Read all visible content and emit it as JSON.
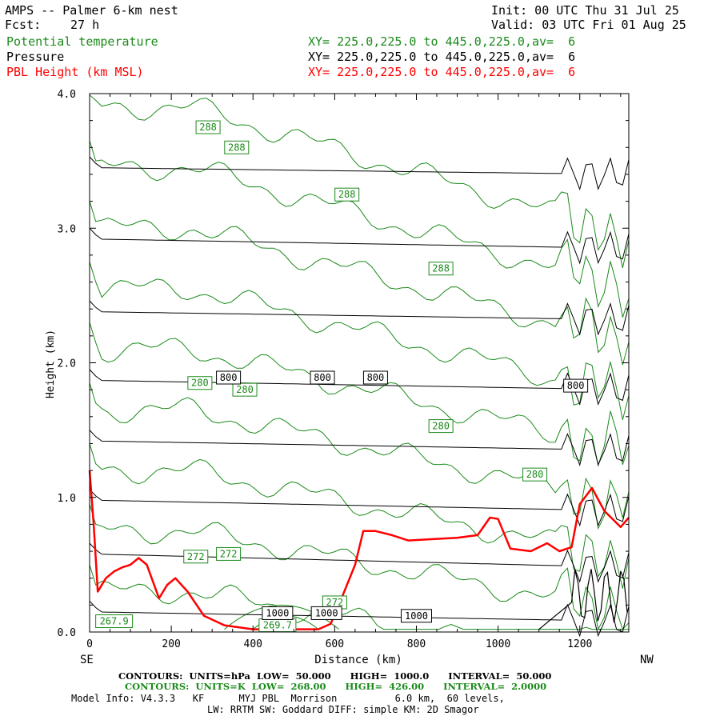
{
  "header": {
    "title_left": "AMPS -- Palmer 6-km nest",
    "fcst_label": "Fcst:",
    "fcst_value": "27 h",
    "init": "Init: 00 UTC Thu 31 Jul 25",
    "valid": "Valid: 03 UTC Fri 01 Aug 25"
  },
  "fields": [
    {
      "name": "Potential temperature",
      "xy": "XY= 225.0,225.0 to 445.0,225.0,av=  6",
      "color": "#1a8a1a"
    },
    {
      "name": "Pressure",
      "xy": "XY= 225.0,225.0 to 445.0,225.0,av=  6",
      "color": "#000000"
    },
    {
      "name": "PBL Height (km MSL)",
      "xy": "XY= 225.0,225.0 to 445.0,225.0,av=  6",
      "color": "#ff0000"
    }
  ],
  "chart_data": {
    "type": "line",
    "title": "",
    "xlabel": "Distance (km)",
    "ylabel": "Height (km)",
    "xlim": [
      0,
      1320
    ],
    "ylim": [
      0,
      4.0
    ],
    "x_ticks": [
      "0",
      "200",
      "400",
      "600",
      "800",
      "1000",
      "1200"
    ],
    "y_ticks": [
      "0.0",
      "1.0",
      "2.0",
      "3.0",
      "4.0"
    ],
    "left_end_label": "SE",
    "right_end_label": "NW",
    "pbl_height": {
      "name": "PBL Height (km MSL)",
      "color": "#ff0000",
      "x": [
        0,
        10,
        20,
        40,
        60,
        80,
        100,
        120,
        140,
        170,
        190,
        210,
        240,
        280,
        330,
        400,
        480,
        560,
        590,
        610,
        630,
        650,
        670,
        700,
        740,
        780,
        840,
        900,
        950,
        980,
        1000,
        1030,
        1080,
        1120,
        1150,
        1180,
        1200,
        1230,
        1260,
        1300,
        1320
      ],
      "y": [
        1.2,
        0.8,
        0.3,
        0.4,
        0.45,
        0.48,
        0.5,
        0.55,
        0.5,
        0.25,
        0.35,
        0.4,
        0.3,
        0.12,
        0.05,
        0.02,
        0.02,
        0.02,
        0.06,
        0.2,
        0.35,
        0.5,
        0.75,
        0.75,
        0.72,
        0.68,
        0.69,
        0.7,
        0.72,
        0.85,
        0.84,
        0.62,
        0.6,
        0.66,
        0.6,
        0.63,
        0.95,
        1.07,
        0.9,
        0.78,
        0.85
      ]
    },
    "pressure_contours": {
      "units": "hPa",
      "color": "#000000",
      "levels": [
        {
          "label": "1000",
          "y_left": 0.15,
          "y_right": 0.08
        },
        {
          "label": "",
          "y_left": 0.58,
          "y_right": 0.48
        },
        {
          "label": "",
          "y_left": 0.98,
          "y_right": 0.9
        },
        {
          "label": "",
          "y_left": 1.42,
          "y_right": 1.35
        },
        {
          "label": "800",
          "y_left": 1.87,
          "y_right": 1.8
        },
        {
          "label": "",
          "y_left": 2.38,
          "y_right": 2.32
        },
        {
          "label": "",
          "y_left": 2.92,
          "y_right": 2.85
        },
        {
          "label": "",
          "y_left": 3.45,
          "y_right": 3.4
        }
      ],
      "inline_labels": [
        "1000",
        "1000",
        "1000",
        "800",
        "800",
        "800",
        "800"
      ]
    },
    "theta_contours": {
      "units": "K",
      "color": "#1a8a1a",
      "inline_labels": [
        "288",
        "288",
        "288",
        "288",
        "280",
        "280",
        "280",
        "280",
        "272",
        "272",
        "272",
        "269.7",
        "267.9"
      ]
    },
    "footer": {
      "line1": "CONTOURS:  UNITS=hPa  LOW=  50.000      HIGH=  1000.0      INTERVAL=  50.000",
      "line2": "CONTOURS:  UNITS=K  LOW=  268.00      HIGH=  426.00      INTERVAL=  2.0000",
      "line3": "Model Info: V4.3.3   KF      MYJ PBL  Morrison          6.0 km,  60 levels,",
      "line4": "LW: RRTM SW: Goddard DIFF: simple KM: 2D Smagor"
    }
  }
}
